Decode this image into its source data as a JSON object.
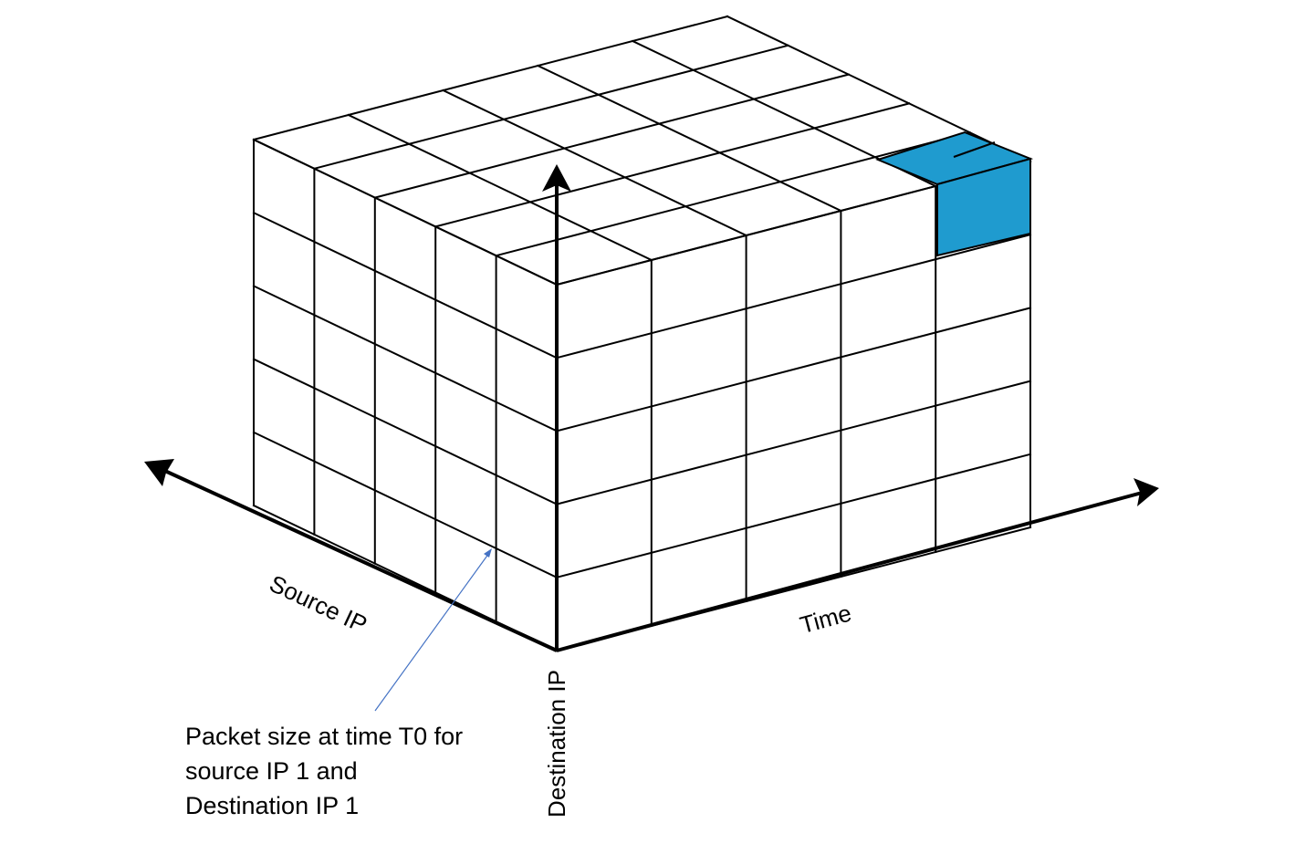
{
  "diagram": {
    "axes": {
      "source_ip": "Source IP",
      "time": "Time",
      "destination_ip": "Destination IP"
    },
    "annotation": {
      "lines": [
        "Packet size at time T0 for",
        "source IP 1 and",
        "Destination IP 1"
      ]
    },
    "colors": {
      "highlight": "#1f9bcf",
      "callout_arrow": "#4472c4",
      "lines": "#000000"
    },
    "grid": {
      "time_cells": 5,
      "source_ip_cells": 5,
      "destination_ip_cells": 5
    }
  }
}
